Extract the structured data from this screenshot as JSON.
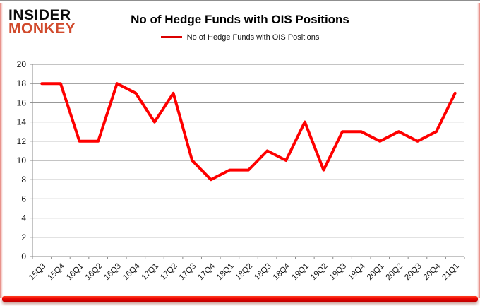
{
  "logo": {
    "line1": "INSIDER",
    "line2": "MONKEY"
  },
  "chart_data": {
    "type": "line",
    "title": "No of Hedge Funds with OIS Positions",
    "legend_label": "No of Hedge Funds with OIS Positions",
    "legend_position": "top",
    "categories": [
      "15Q3",
      "15Q4",
      "16Q1",
      "16Q2",
      "16Q3",
      "16Q4",
      "17Q1",
      "17Q2",
      "17Q3",
      "17Q4",
      "18Q1",
      "18Q2",
      "18Q3",
      "18Q4",
      "19Q1",
      "19Q2",
      "19Q3",
      "19Q4",
      "20Q1",
      "20Q2",
      "20Q3",
      "20Q4",
      "21Q1"
    ],
    "series": [
      {
        "name": "No of Hedge Funds with OIS Positions",
        "values": [
          18,
          18,
          12,
          12,
          18,
          17,
          14,
          17,
          10,
          8,
          9,
          9,
          11,
          10,
          14,
          9,
          13,
          13,
          12,
          13,
          12,
          13,
          17
        ]
      }
    ],
    "ylim": [
      0,
      20
    ],
    "ytick_step": 2,
    "grid": true,
    "line_color": "#fe0000",
    "legend_swatch_color": "#db0000",
    "grid_color": "#898989",
    "axis_text_color": "#141414",
    "logo_accent_color": "#d14a2c",
    "bottom_bar_color": "#ea0400"
  }
}
